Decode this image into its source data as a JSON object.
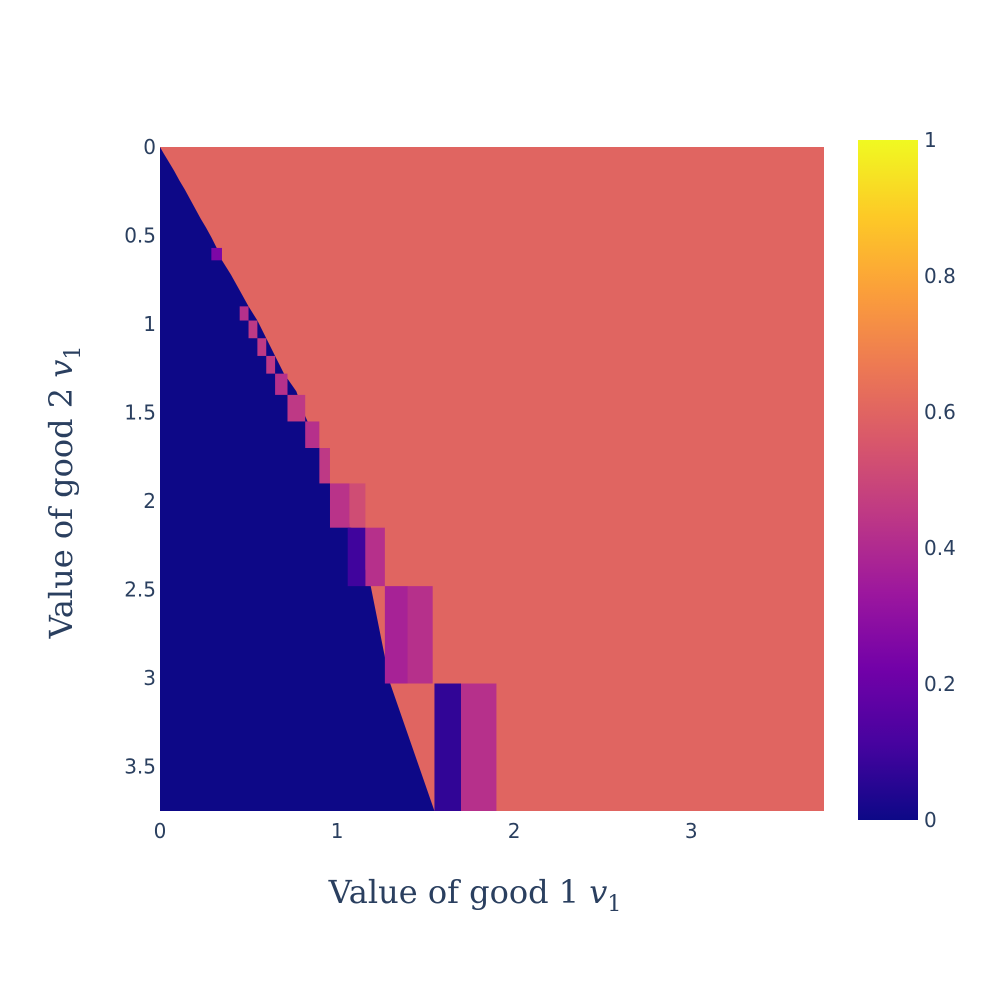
{
  "chart_data": {
    "type": "heatmap",
    "title": "",
    "xlabel": {
      "main": "Value of good 1 ",
      "var": "v",
      "sub": "1"
    },
    "ylabel": {
      "main": "Value of good 2 ",
      "var": "v",
      "sub": "1"
    },
    "xlim": [
      0,
      3.75
    ],
    "ylim": [
      0,
      3.75
    ],
    "x_ticks": [
      0,
      1,
      2,
      3
    ],
    "x_tick_labels": [
      "0",
      "1",
      "2",
      "3"
    ],
    "y_ticks": [
      0,
      0.5,
      1,
      1.5,
      2,
      2.5,
      3,
      3.5
    ],
    "y_tick_labels": [
      "0",
      "0.5",
      "1",
      "1.5",
      "2",
      "2.5",
      "3",
      "3.5"
    ],
    "y_reversed": true,
    "colorscale": "Plasma",
    "colorscale_stops": [
      "#0d0887",
      "#46039f",
      "#7201a8",
      "#9c179e",
      "#bd3786",
      "#d8576b",
      "#ed7953",
      "#fb9f3a",
      "#fdca26",
      "#f0f921"
    ],
    "colorbar_range": [
      0,
      1
    ],
    "colorbar_ticks": [
      0,
      0.2,
      0.4,
      0.6,
      0.8,
      1
    ],
    "colorbar_tick_labels": [
      "0",
      "0.2",
      "0.4",
      "0.6",
      "0.8",
      "1"
    ],
    "background_value": 0.6,
    "region_value": 0,
    "boundary": [
      [
        0.0,
        0.0
      ],
      [
        0.02,
        0.035
      ],
      [
        0.05,
        0.085
      ],
      [
        0.08,
        0.135
      ],
      [
        0.11,
        0.19
      ],
      [
        0.14,
        0.24
      ],
      [
        0.17,
        0.295
      ],
      [
        0.2,
        0.35
      ],
      [
        0.23,
        0.405
      ],
      [
        0.26,
        0.455
      ],
      [
        0.29,
        0.51
      ],
      [
        0.32,
        0.57
      ],
      [
        0.35,
        0.64
      ],
      [
        0.4,
        0.72
      ],
      [
        0.45,
        0.81
      ],
      [
        0.5,
        0.9
      ],
      [
        0.55,
        0.98
      ],
      [
        0.6,
        1.08
      ],
      [
        0.65,
        1.18
      ],
      [
        0.7,
        1.28
      ],
      [
        0.77,
        1.38
      ],
      [
        0.82,
        1.52
      ],
      [
        0.9,
        1.7
      ],
      [
        0.96,
        1.9
      ],
      [
        1.08,
        2.15
      ],
      [
        1.19,
        2.48
      ],
      [
        1.3,
        3.03
      ],
      [
        1.55,
        3.75
      ]
    ],
    "cells": [
      {
        "x0": 0.29,
        "x1": 0.35,
        "y0": 0.57,
        "y1": 0.64,
        "value": 0.25
      },
      {
        "x0": 0.45,
        "x1": 0.5,
        "y0": 0.9,
        "y1": 0.98,
        "value": 0.42
      },
      {
        "x0": 0.5,
        "x1": 0.55,
        "y0": 0.98,
        "y1": 1.08,
        "value": 0.45
      },
      {
        "x0": 0.55,
        "x1": 0.6,
        "y0": 1.08,
        "y1": 1.18,
        "value": 0.45
      },
      {
        "x0": 0.6,
        "x1": 0.65,
        "y0": 1.18,
        "y1": 1.28,
        "value": 0.45
      },
      {
        "x0": 0.65,
        "x1": 0.72,
        "y0": 1.28,
        "y1": 1.4,
        "value": 0.42
      },
      {
        "x0": 0.72,
        "x1": 0.82,
        "y0": 1.4,
        "y1": 1.55,
        "value": 0.45
      },
      {
        "x0": 0.82,
        "x1": 0.9,
        "y0": 1.55,
        "y1": 1.7,
        "value": 0.42
      },
      {
        "x0": 0.9,
        "x1": 0.96,
        "y0": 1.7,
        "y1": 1.9,
        "value": 0.45
      },
      {
        "x0": 0.96,
        "x1": 1.07,
        "y0": 1.9,
        "y1": 2.15,
        "value": 0.43
      },
      {
        "x0": 1.07,
        "x1": 1.16,
        "y0": 1.9,
        "y1": 2.15,
        "value": 0.52
      },
      {
        "x0": 1.06,
        "x1": 1.16,
        "y0": 2.15,
        "y1": 2.48,
        "value": 0.1
      },
      {
        "x0": 1.16,
        "x1": 1.27,
        "y0": 2.15,
        "y1": 2.48,
        "value": 0.42
      },
      {
        "x0": 1.27,
        "x1": 1.4,
        "y0": 2.48,
        "y1": 3.03,
        "value": 0.37
      },
      {
        "x0": 1.4,
        "x1": 1.54,
        "y0": 2.48,
        "y1": 3.03,
        "value": 0.42
      },
      {
        "x0": 1.55,
        "x1": 1.7,
        "y0": 3.03,
        "y1": 3.75,
        "value": 0.07
      },
      {
        "x0": 1.7,
        "x1": 1.9,
        "y0": 3.03,
        "y1": 3.75,
        "value": 0.42
      }
    ]
  }
}
